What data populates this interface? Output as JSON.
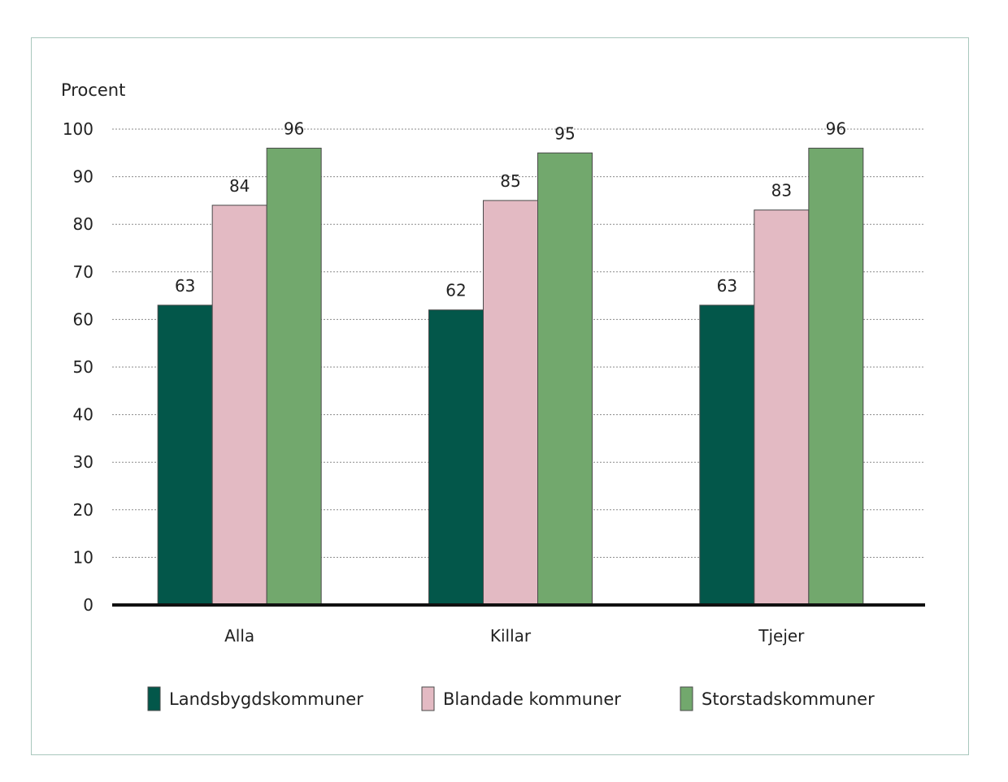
{
  "chart_data": {
    "type": "bar",
    "ylabel": "Procent",
    "xlabel": "",
    "ylim": [
      0,
      100
    ],
    "yticks": [
      0,
      10,
      20,
      30,
      40,
      50,
      60,
      70,
      80,
      90,
      100
    ],
    "grid": true,
    "legend_position": "bottom",
    "categories": [
      "Alla",
      "Killar",
      "Tjejer"
    ],
    "series": [
      {
        "name": "Landsbygdskommuner",
        "color": "#03574a",
        "values": [
          63,
          62,
          63
        ]
      },
      {
        "name": "Blandade kommuner",
        "color": "#e3bac3",
        "values": [
          84,
          85,
          83
        ]
      },
      {
        "name": "Storstadskommuner",
        "color": "#72a86d",
        "values": [
          96,
          95,
          96
        ]
      }
    ]
  }
}
